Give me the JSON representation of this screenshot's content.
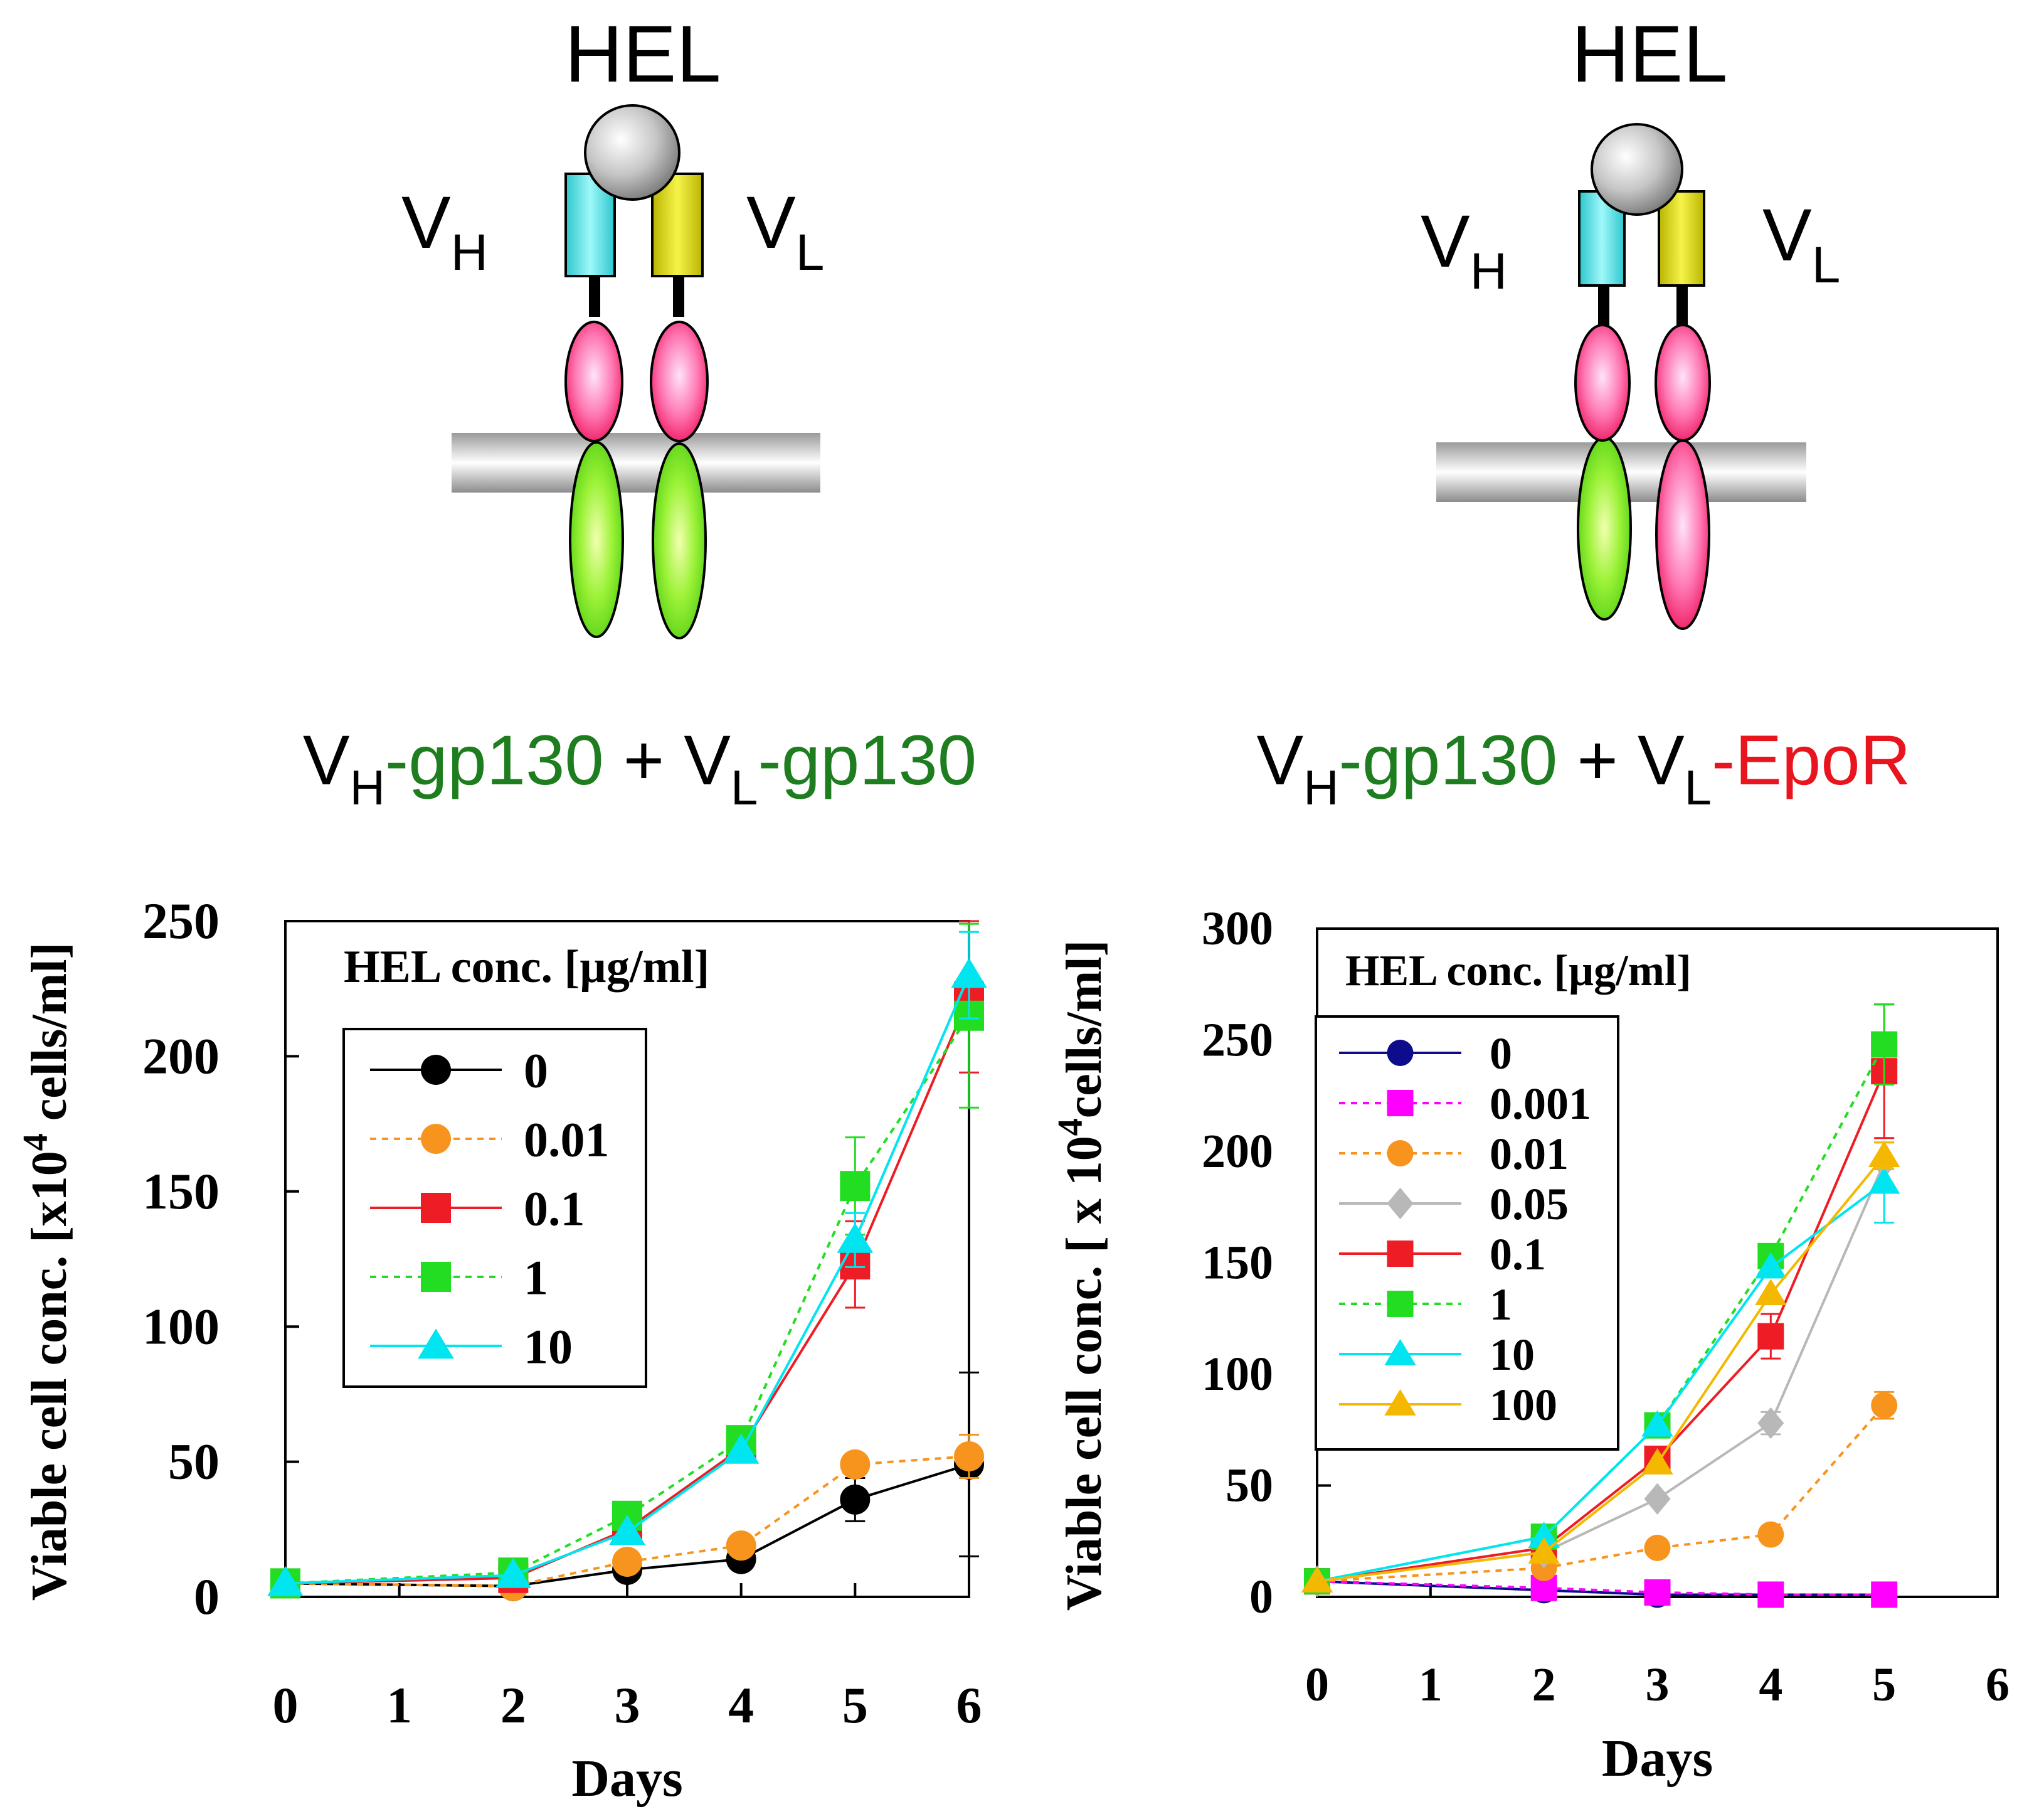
{
  "colors": {
    "green_text": "#1e7d1e",
    "red_text": "#e8141e",
    "black": "#000000",
    "orange": "#f7941d",
    "red": "#ee1c24",
    "green": "#22dd22",
    "cyan": "#00e5f0",
    "navy": "#0c0c8c",
    "magenta": "#ff00ff",
    "gray": "#b8b8b8",
    "amber": "#f5b800",
    "vh_domain": "#36d6dc",
    "vl_domain": "#c9c60c"
  },
  "diagrams": [
    {
      "antigen": "HEL",
      "vh": {
        "main": "V",
        "sub": "H"
      },
      "vl": {
        "main": "V",
        "sub": "L"
      },
      "construct": {
        "a_main": "V",
        "a_sub": "H",
        "a_rest": "-gp130",
        "plus": " + ",
        "b_main": "V",
        "b_sub": "L",
        "b_rest": "-gp130"
      },
      "right_tm_domain": "gp130"
    },
    {
      "antigen": "HEL",
      "vh": {
        "main": "V",
        "sub": "H"
      },
      "vl": {
        "main": "V",
        "sub": "L"
      },
      "construct": {
        "a_main": "V",
        "a_sub": "H",
        "a_rest": "-gp130",
        "plus": " + ",
        "b_main": "V",
        "b_sub": "L",
        "b_rest": "-EpoR"
      },
      "right_tm_domain": "EpoR"
    }
  ],
  "chart_data": [
    {
      "type": "line",
      "ylabel_main": "Viable cell conc. [x10",
      "ylabel_sup": "4",
      "ylabel_tail": " cells/ml]",
      "xlabel": "Days",
      "legend_title": "HEL conc. [µg/ml]",
      "xlim": [
        0,
        6
      ],
      "ylim": [
        0,
        250
      ],
      "xticks": [
        0,
        1,
        2,
        3,
        4,
        5,
        6
      ],
      "yticks": [
        0,
        50,
        100,
        150,
        200,
        250
      ],
      "series": [
        {
          "name": "0",
          "color": "#000000",
          "marker": "circle",
          "dash": false,
          "x": [
            0,
            2,
            3,
            4,
            5,
            6
          ],
          "y": [
            5,
            4,
            10,
            14,
            36,
            49
          ],
          "err": [
            0,
            0,
            0,
            0,
            8,
            34
          ]
        },
        {
          "name": "0.01",
          "color": "#f7941d",
          "marker": "circle",
          "dash": true,
          "x": [
            0,
            2,
            3,
            4,
            5,
            6
          ],
          "y": [
            5,
            4,
            13,
            19,
            49,
            52
          ],
          "err": [
            0,
            0,
            0,
            0,
            0,
            8
          ]
        },
        {
          "name": "0.1",
          "color": "#ee1c24",
          "marker": "square",
          "dash": false,
          "x": [
            0,
            2,
            3,
            4,
            5,
            6
          ],
          "y": [
            5,
            7,
            25,
            55,
            123,
            222
          ],
          "err": [
            0,
            0,
            0,
            0,
            16,
            28
          ]
        },
        {
          "name": "1",
          "color": "#22dd22",
          "marker": "square",
          "dash": true,
          "x": [
            0,
            2,
            3,
            4,
            5,
            6
          ],
          "y": [
            5,
            9,
            30,
            58,
            152,
            215
          ],
          "err": [
            0,
            0,
            0,
            0,
            18,
            34
          ]
        },
        {
          "name": "10",
          "color": "#00e5f0",
          "marker": "triangle",
          "dash": false,
          "x": [
            0,
            2,
            3,
            4,
            5,
            6
          ],
          "y": [
            5,
            8,
            24,
            54,
            132,
            230
          ],
          "err": [
            0,
            0,
            0,
            0,
            10,
            16
          ]
        }
      ]
    },
    {
      "type": "line",
      "ylabel_main": "Viable cell conc. [ x 10",
      "ylabel_sup": "4",
      "ylabel_tail": "cells/ml]",
      "xlabel": "Days",
      "legend_title": "HEL conc. [µg/ml]",
      "xlim": [
        0,
        6
      ],
      "ylim": [
        0,
        300
      ],
      "xticks": [
        0,
        1,
        2,
        3,
        4,
        5,
        6
      ],
      "yticks": [
        0,
        50,
        100,
        150,
        200,
        250,
        300
      ],
      "series": [
        {
          "name": "0",
          "color": "#0c0c8c",
          "marker": "circle",
          "dash": false,
          "x": [
            0,
            2,
            3,
            4,
            5
          ],
          "y": [
            7,
            3,
            1,
            1,
            1
          ],
          "err": [
            0,
            0,
            0,
            0,
            0
          ]
        },
        {
          "name": "0.001",
          "color": "#ff00ff",
          "marker": "square",
          "dash": true,
          "x": [
            0,
            2,
            3,
            4,
            5
          ],
          "y": [
            7,
            4,
            2,
            1,
            1
          ],
          "err": [
            0,
            0,
            0,
            0,
            0
          ]
        },
        {
          "name": "0.01",
          "color": "#f7941d",
          "marker": "circle",
          "dash": true,
          "x": [
            0,
            2,
            3,
            4,
            5
          ],
          "y": [
            7,
            13,
            22,
            28,
            86
          ],
          "err": [
            0,
            0,
            0,
            0,
            6
          ]
        },
        {
          "name": "0.05",
          "color": "#b8b8b8",
          "marker": "diamond",
          "dash": false,
          "x": [
            0,
            2,
            3,
            4,
            5
          ],
          "y": [
            7,
            20,
            44,
            78,
            195
          ],
          "err": [
            0,
            0,
            0,
            5,
            0
          ]
        },
        {
          "name": "0.1",
          "color": "#ee1c24",
          "marker": "square",
          "dash": false,
          "x": [
            0,
            2,
            3,
            4,
            5
          ],
          "y": [
            7,
            22,
            62,
            117,
            236
          ],
          "err": [
            0,
            0,
            0,
            10,
            30
          ]
        },
        {
          "name": "1",
          "color": "#22dd22",
          "marker": "square",
          "dash": true,
          "x": [
            0,
            2,
            3,
            4,
            5
          ],
          "y": [
            7,
            27,
            77,
            153,
            248
          ],
          "err": [
            0,
            0,
            0,
            5,
            18
          ]
        },
        {
          "name": "10",
          "color": "#00e5f0",
          "marker": "triangle",
          "dash": false,
          "x": [
            0,
            2,
            3,
            4,
            5
          ],
          "y": [
            7,
            27,
            77,
            148,
            186
          ],
          "err": [
            0,
            0,
            0,
            0,
            18
          ]
        },
        {
          "name": "100",
          "color": "#f5b800",
          "marker": "triangle",
          "dash": false,
          "x": [
            0,
            2,
            3,
            4,
            5
          ],
          "y": [
            7,
            20,
            60,
            136,
            198
          ],
          "err": [
            0,
            0,
            0,
            0,
            6
          ]
        }
      ]
    }
  ]
}
